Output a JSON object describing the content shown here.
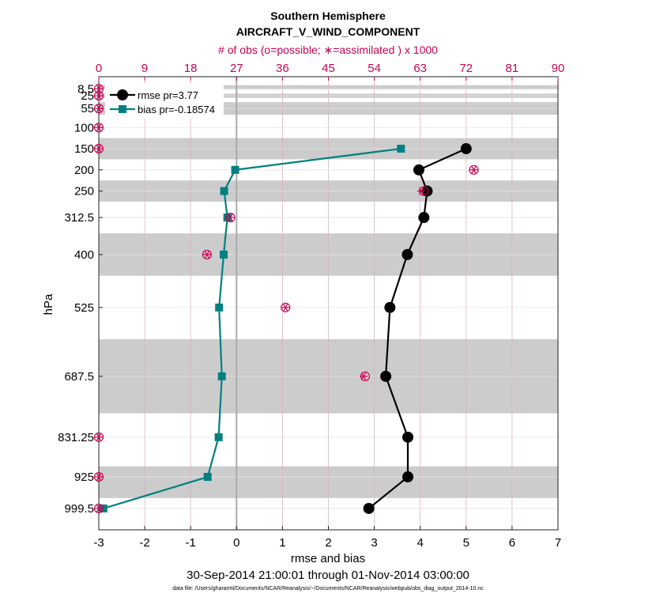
{
  "chart_data": {
    "type": "line",
    "title": "Southern Hemisphere",
    "subtitle": "AIRCRAFT_V_WIND_COMPONENT",
    "top_axis_label": "# of obs (o=possible; ∗=assimilated ) x 1000",
    "xlabel": "rmse and bias",
    "ylabel": "hPa",
    "date_range": "30-Sep-2014 21:00:01 through 01-Nov-2014 03:00:00",
    "footnote": "data file: /Users/gharamti/Documents/NCAR/Reanalysis/~/Documents/NCAR/Reanalysis/webpub/obs_diag_output_2014-10.nc",
    "xlim": [
      -3,
      7
    ],
    "x_ticks": [
      "-3",
      "-2",
      "-1",
      "0",
      "1",
      "2",
      "3",
      "4",
      "5",
      "6",
      "7"
    ],
    "top_xlim": [
      0,
      90
    ],
    "top_ticks": [
      "0",
      "9",
      "18",
      "27",
      "36",
      "45",
      "54",
      "63",
      "72",
      "81",
      "90"
    ],
    "ylim": [
      1050,
      -20
    ],
    "y_ticks": [
      "8.5",
      "25",
      "55",
      "100",
      "150",
      "200",
      "250",
      "312.5",
      "400",
      "525",
      "687.5",
      "831.25",
      "925",
      "999.5"
    ],
    "y_tick_values": [
      8.5,
      25,
      55,
      100,
      150,
      200,
      250,
      312.5,
      400,
      525,
      687.5,
      831.25,
      925,
      999.5
    ],
    "layer_bands": [
      [
        0,
        10
      ],
      [
        20,
        30
      ],
      [
        40,
        70
      ],
      [
        125,
        175
      ],
      [
        225,
        275
      ],
      [
        350,
        450
      ],
      [
        600,
        775
      ],
      [
        900,
        975
      ]
    ],
    "series": [
      {
        "name": "rmse pr=3.77",
        "color": "#000000",
        "marker": "circle",
        "points": [
          [
            5.0,
            150
          ],
          [
            3.97,
            200
          ],
          [
            4.15,
            250
          ],
          [
            4.08,
            312.5
          ],
          [
            3.72,
            400
          ],
          [
            3.34,
            525
          ],
          [
            3.25,
            687.5
          ],
          [
            3.73,
            831.25
          ],
          [
            3.73,
            925
          ],
          [
            2.88,
            999.5
          ]
        ]
      },
      {
        "name": "bias pr=-0.18574",
        "color": "#008080",
        "marker": "square",
        "points": [
          [
            3.58,
            150
          ],
          [
            -0.03,
            200
          ],
          [
            -0.27,
            250
          ],
          [
            -0.2,
            312.5
          ],
          [
            -0.28,
            400
          ],
          [
            -0.38,
            525
          ],
          [
            -0.32,
            687.5
          ],
          [
            -0.39,
            831.25
          ],
          [
            -0.63,
            925
          ],
          [
            -2.9,
            999.5
          ]
        ]
      }
    ],
    "obs_possible": [
      [
        0,
        8.5
      ],
      [
        0,
        25
      ],
      [
        0,
        55
      ],
      [
        0,
        100
      ],
      [
        0,
        150
      ],
      [
        73.5,
        200
      ],
      [
        63.7,
        250
      ],
      [
        25.8,
        312.5
      ],
      [
        21.2,
        400
      ],
      [
        36.6,
        525
      ],
      [
        52.2,
        687.5
      ],
      [
        0,
        831.25
      ],
      [
        0,
        925
      ],
      [
        0,
        999.5
      ]
    ],
    "obs_assimilated": [
      [
        0,
        8.5
      ],
      [
        0,
        25
      ],
      [
        0,
        55
      ],
      [
        0,
        100
      ],
      [
        0,
        150
      ],
      [
        73.5,
        200
      ],
      [
        63.2,
        250
      ],
      [
        25.8,
        312.5
      ],
      [
        21.2,
        400
      ],
      [
        36.6,
        525
      ],
      [
        51.9,
        687.5
      ],
      [
        0,
        831.25
      ],
      [
        0,
        925
      ],
      [
        0,
        999.5
      ]
    ],
    "colors": {
      "obs": "#cc0055",
      "rmse": "#000000",
      "bias": "#008080",
      "band": "#cccccc",
      "grid": "#d9b3c3",
      "zero_line": "#aaaaaa"
    },
    "grid": true,
    "legend_position": "top-left"
  }
}
